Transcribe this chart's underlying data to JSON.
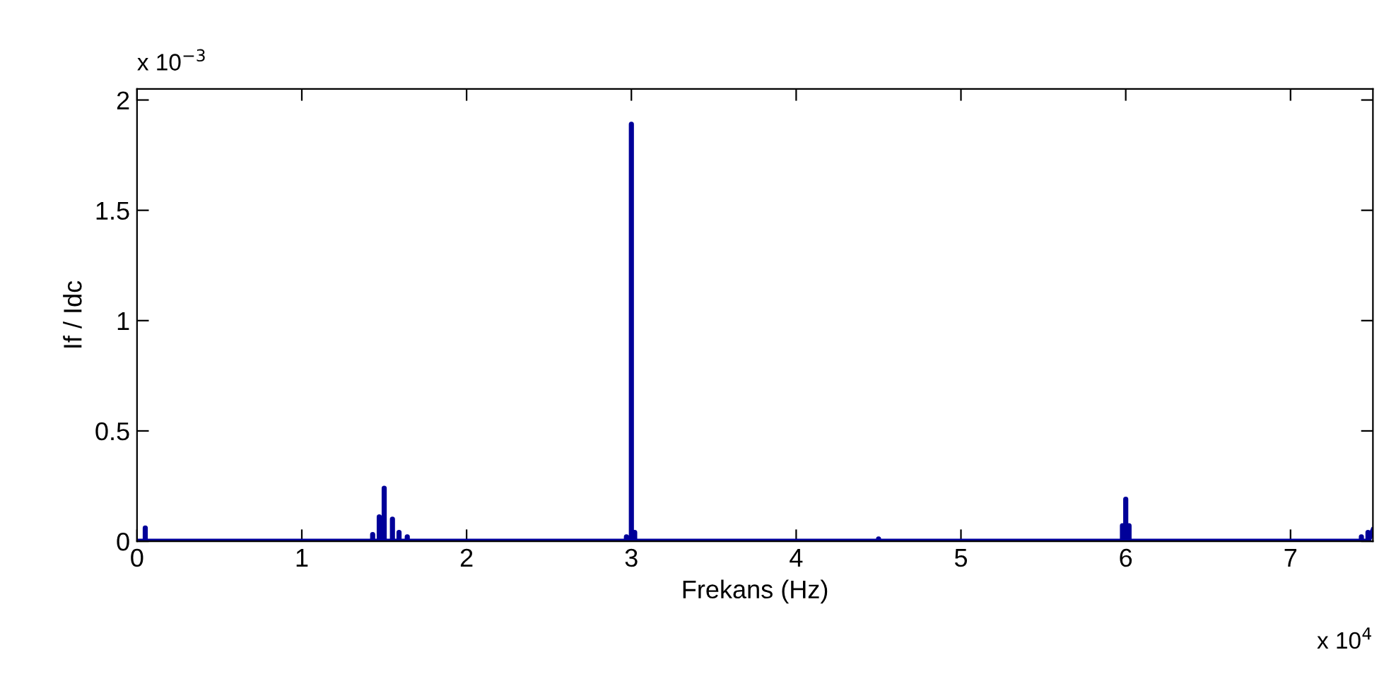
{
  "chart_data": {
    "type": "line",
    "xlabel": "Frekans (Hz)",
    "ylabel": "If / Idc",
    "annotations": [
      "x 10$^{−3}$",
      "x 10$^{4}$"
    ],
    "series": [
      {
        "color": "#000099",
        "x": [
          0,
          0.05,
          0.05,
          0.05,
          1.43,
          1.43,
          1.43,
          1.47,
          1.47,
          1.47,
          1.5,
          1.5,
          1.5,
          1.55,
          1.55,
          1.55,
          1.59,
          1.59,
          1.59,
          1.64,
          1.64,
          1.64,
          2.97,
          2.97,
          2.97,
          3,
          3,
          3,
          3.02,
          3.02,
          3.02,
          4.5,
          4.5,
          4.5,
          5.98,
          5.98,
          5.98,
          6,
          6,
          6,
          6.02,
          6.02,
          6.02,
          7.43,
          7.43,
          7.43,
          7.47,
          7.47,
          7.47,
          7.5
        ],
        "values": [
          0,
          0,
          0.06,
          0,
          0,
          0.03,
          0,
          0,
          0.11,
          0,
          0,
          0.24,
          0,
          0,
          0.1,
          0,
          0,
          0.04,
          0,
          0,
          0.02,
          0,
          0,
          0.02,
          0,
          0,
          1.89,
          0,
          0,
          0.04,
          0,
          0,
          0.01,
          0,
          0,
          0.07,
          0,
          0,
          0.19,
          0,
          0,
          0.07,
          0,
          0,
          0.02,
          0,
          0,
          0.04,
          0,
          0.05
        ]
      }
    ],
    "xlim": [
      0,
      7.5
    ],
    "xticks": [
      0,
      1,
      2,
      3,
      4,
      5,
      6,
      7
    ],
    "ylim": [
      0,
      2.05
    ],
    "yticks": [
      0,
      0.5,
      1,
      1.5,
      2
    ],
    "grid": false,
    "marker": "none",
    "line_style": "solid"
  }
}
